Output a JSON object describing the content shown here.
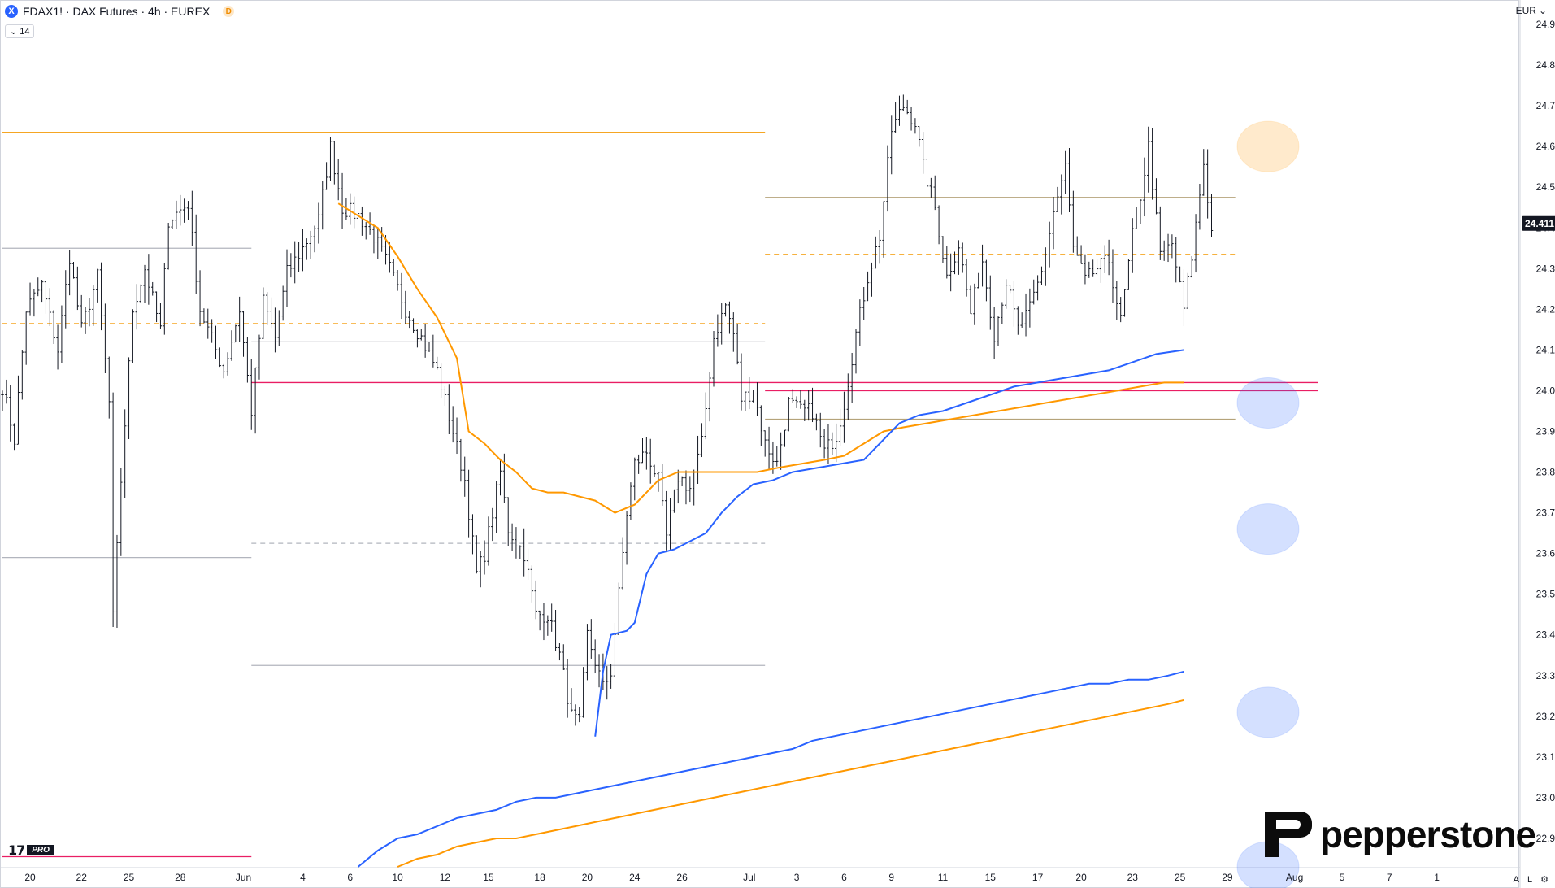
{
  "header": {
    "symbol_icon": "X",
    "title": "FDAX1! · DAX Futures · 4h · EUREX",
    "badge": "D",
    "indicator_count": "14",
    "currency": "EUR"
  },
  "footer": {
    "tv_logo": "17",
    "tv_pro": "PRO",
    "brand": "pepperstone",
    "btn_auto": "A",
    "btn_log": "L"
  },
  "icons": {
    "symbol": "exchange-logo-icon",
    "chevron": "chevron-down-icon",
    "currency_chevron": "chevron-down-icon",
    "brand_mark": "pepperstone-p-icon",
    "settings": "gear-icon"
  },
  "colors": {
    "candle": "#131722",
    "ema_orange": "#ff9800",
    "ema_blue": "#2962ff",
    "level_orange": "#f5a623",
    "level_gray": "#b2b5be",
    "level_pink": "#e91e63",
    "level_olive": "#b5a37a",
    "price_badge": "#131722",
    "target_blue": "#2962ff",
    "target_orange": "#ff9800"
  },
  "chart_data": {
    "type": "candlestick",
    "symbol": "FDAX1!",
    "timeframe": "4h",
    "ylim": [
      22830,
      24960
    ],
    "yticks": [
      22900,
      23000,
      23100,
      23200,
      23300,
      23400,
      23500,
      23600,
      23700,
      23800,
      23900,
      24000,
      24100,
      24200,
      24300,
      24400,
      24500,
      24600,
      24700,
      24800,
      24900
    ],
    "ytick_labels": [
      "22.900",
      "23.000",
      "23.100",
      "23.200",
      "23.300",
      "23.400",
      "23.500",
      "23.600",
      "23.700",
      "23.800",
      "23.900",
      "24.000",
      "24.100",
      "24.200",
      "24.300",
      "24.400",
      "24.500",
      "24.600",
      "24.700",
      "24.800",
      "24.900"
    ],
    "last_price": 24411,
    "last_price_label": "24.411",
    "bars_total": 324,
    "xticks": [
      {
        "label": "20",
        "bar": 7
      },
      {
        "label": "22",
        "bar": 20
      },
      {
        "label": "25",
        "bar": 32
      },
      {
        "label": "28",
        "bar": 45
      },
      {
        "label": "Jun",
        "bar": 61
      },
      {
        "label": "4",
        "bar": 76
      },
      {
        "label": "6",
        "bar": 88
      },
      {
        "label": "10",
        "bar": 100
      },
      {
        "label": "12",
        "bar": 112
      },
      {
        "label": "15",
        "bar": 123
      },
      {
        "label": "18",
        "bar": 136
      },
      {
        "label": "20",
        "bar": 148
      },
      {
        "label": "24",
        "bar": 160
      },
      {
        "label": "26",
        "bar": 172
      },
      {
        "label": "Jul",
        "bar": 189
      },
      {
        "label": "3",
        "bar": 201
      },
      {
        "label": "6",
        "bar": 213
      },
      {
        "label": "9",
        "bar": 225
      },
      {
        "label": "11",
        "bar": 238
      },
      {
        "label": "15",
        "bar": 250
      },
      {
        "label": "17",
        "bar": 262
      },
      {
        "label": "20",
        "bar": 273
      },
      {
        "label": "23",
        "bar": 286
      },
      {
        "label": "25",
        "bar": 298
      },
      {
        "label": "29",
        "bar": 310
      },
      {
        "label": "Aug",
        "bar": 327
      },
      {
        "label": "5",
        "bar": 339
      },
      {
        "label": "7",
        "bar": 351
      },
      {
        "label": "1",
        "bar": 363
      }
    ],
    "price_path": [
      [
        0,
        24010
      ],
      [
        3,
        23880
      ],
      [
        6,
        24200
      ],
      [
        10,
        24260
      ],
      [
        14,
        24100
      ],
      [
        17,
        24330
      ],
      [
        20,
        24150
      ],
      [
        24,
        24280
      ],
      [
        27,
        23970
      ],
      [
        28,
        23440
      ],
      [
        30,
        23780
      ],
      [
        33,
        24200
      ],
      [
        36,
        24300
      ],
      [
        40,
        24150
      ],
      [
        42,
        24420
      ],
      [
        47,
        24460
      ],
      [
        50,
        24200
      ],
      [
        54,
        24100
      ],
      [
        56,
        24050
      ],
      [
        60,
        24200
      ],
      [
        63,
        23950
      ],
      [
        66,
        24220
      ],
      [
        69,
        24130
      ],
      [
        72,
        24290
      ],
      [
        76,
        24350
      ],
      [
        80,
        24420
      ],
      [
        83,
        24600
      ],
      [
        86,
        24450
      ],
      [
        90,
        24430
      ],
      [
        94,
        24380
      ],
      [
        98,
        24300
      ],
      [
        102,
        24200
      ],
      [
        106,
        24130
      ],
      [
        110,
        24050
      ],
      [
        114,
        23900
      ],
      [
        117,
        23780
      ],
      [
        120,
        23550
      ],
      [
        122,
        23600
      ],
      [
        126,
        23800
      ],
      [
        128,
        23660
      ],
      [
        132,
        23600
      ],
      [
        135,
        23450
      ],
      [
        138,
        23450
      ],
      [
        141,
        23350
      ],
      [
        144,
        23200
      ],
      [
        146,
        23180
      ],
      [
        148,
        23400
      ],
      [
        152,
        23270
      ],
      [
        154,
        23310
      ],
      [
        156,
        23500
      ],
      [
        158,
        23700
      ],
      [
        160,
        23820
      ],
      [
        163,
        23850
      ],
      [
        166,
        23780
      ],
      [
        168,
        23640
      ],
      [
        171,
        23790
      ],
      [
        174,
        23760
      ],
      [
        177,
        23870
      ],
      [
        180,
        24130
      ],
      [
        183,
        24210
      ],
      [
        185,
        24140
      ],
      [
        187,
        23980
      ],
      [
        190,
        24000
      ],
      [
        193,
        23870
      ],
      [
        196,
        23820
      ],
      [
        199,
        23970
      ],
      [
        202,
        23950
      ],
      [
        205,
        23950
      ],
      [
        208,
        23850
      ],
      [
        211,
        23890
      ],
      [
        213,
        23970
      ],
      [
        216,
        24140
      ],
      [
        219,
        24280
      ],
      [
        222,
        24380
      ],
      [
        225,
        24640
      ],
      [
        228,
        24700
      ],
      [
        231,
        24660
      ],
      [
        233,
        24550
      ],
      [
        236,
        24450
      ],
      [
        239,
        24280
      ],
      [
        242,
        24360
      ],
      [
        245,
        24190
      ],
      [
        248,
        24320
      ],
      [
        251,
        24140
      ],
      [
        254,
        24270
      ],
      [
        257,
        24150
      ],
      [
        260,
        24200
      ],
      [
        263,
        24290
      ],
      [
        266,
        24440
      ],
      [
        269,
        24550
      ],
      [
        271,
        24350
      ],
      [
        274,
        24270
      ],
      [
        277,
        24300
      ],
      [
        280,
        24320
      ],
      [
        283,
        24170
      ],
      [
        286,
        24380
      ],
      [
        288,
        24480
      ],
      [
        290,
        24600
      ],
      [
        293,
        24330
      ],
      [
        296,
        24360
      ],
      [
        299,
        24200
      ],
      [
        301,
        24330
      ],
      [
        304,
        24560
      ],
      [
        306,
        24390
      ]
    ],
    "series": [
      {
        "style": "ema_orange",
        "points": [
          [
            85,
            24460
          ],
          [
            95,
            24400
          ],
          [
            100,
            24330
          ],
          [
            105,
            24250
          ],
          [
            110,
            24180
          ],
          [
            115,
            24080
          ],
          [
            118,
            23900
          ],
          [
            122,
            23870
          ],
          [
            126,
            23830
          ],
          [
            130,
            23800
          ],
          [
            134,
            23760
          ],
          [
            138,
            23750
          ],
          [
            142,
            23750
          ],
          [
            146,
            23740
          ],
          [
            150,
            23730
          ],
          [
            155,
            23700
          ],
          [
            160,
            23720
          ],
          [
            166,
            23780
          ],
          [
            171,
            23800
          ],
          [
            176,
            23800
          ],
          [
            181,
            23800
          ],
          [
            186,
            23800
          ],
          [
            191,
            23800
          ],
          [
            196,
            23810
          ],
          [
            202,
            23820
          ],
          [
            208,
            23830
          ],
          [
            213,
            23840
          ],
          [
            218,
            23870
          ],
          [
            223,
            23900
          ],
          [
            228,
            23910
          ],
          [
            234,
            23920
          ],
          [
            240,
            23930
          ],
          [
            246,
            23940
          ],
          [
            252,
            23950
          ],
          [
            258,
            23960
          ],
          [
            264,
            23970
          ],
          [
            270,
            23980
          ],
          [
            276,
            23990
          ],
          [
            282,
            24000
          ],
          [
            288,
            24010
          ],
          [
            294,
            24020
          ],
          [
            299,
            24020
          ]
        ]
      },
      {
        "style": "ema_blue",
        "points": [
          [
            150,
            23150
          ],
          [
            152,
            23310
          ],
          [
            154,
            23400
          ],
          [
            158,
            23410
          ],
          [
            160,
            23430
          ],
          [
            163,
            23550
          ],
          [
            166,
            23600
          ],
          [
            170,
            23610
          ],
          [
            174,
            23630
          ],
          [
            178,
            23650
          ],
          [
            182,
            23700
          ],
          [
            186,
            23740
          ],
          [
            190,
            23770
          ],
          [
            195,
            23780
          ],
          [
            200,
            23800
          ],
          [
            206,
            23810
          ],
          [
            212,
            23820
          ],
          [
            218,
            23830
          ],
          [
            222,
            23870
          ],
          [
            227,
            23920
          ],
          [
            232,
            23940
          ],
          [
            238,
            23950
          ],
          [
            244,
            23970
          ],
          [
            250,
            23990
          ],
          [
            256,
            24010
          ],
          [
            262,
            24020
          ],
          [
            268,
            24030
          ],
          [
            274,
            24040
          ],
          [
            280,
            24050
          ],
          [
            286,
            24070
          ],
          [
            292,
            24090
          ],
          [
            299,
            24100
          ]
        ]
      },
      {
        "style": "ema_blue",
        "points": [
          [
            90,
            22830
          ],
          [
            95,
            22870
          ],
          [
            100,
            22900
          ],
          [
            105,
            22910
          ],
          [
            110,
            22930
          ],
          [
            115,
            22950
          ],
          [
            120,
            22960
          ],
          [
            125,
            22970
          ],
          [
            130,
            22990
          ],
          [
            135,
            23000
          ],
          [
            140,
            23000
          ],
          [
            145,
            23010
          ],
          [
            150,
            23020
          ],
          [
            155,
            23030
          ],
          [
            160,
            23040
          ],
          [
            165,
            23050
          ],
          [
            170,
            23060
          ],
          [
            175,
            23070
          ],
          [
            180,
            23080
          ],
          [
            185,
            23090
          ],
          [
            190,
            23100
          ],
          [
            195,
            23110
          ],
          [
            200,
            23120
          ],
          [
            205,
            23140
          ],
          [
            210,
            23150
          ],
          [
            215,
            23160
          ],
          [
            220,
            23170
          ],
          [
            225,
            23180
          ],
          [
            230,
            23190
          ],
          [
            235,
            23200
          ],
          [
            240,
            23210
          ],
          [
            245,
            23220
          ],
          [
            250,
            23230
          ],
          [
            255,
            23240
          ],
          [
            260,
            23250
          ],
          [
            265,
            23260
          ],
          [
            270,
            23270
          ],
          [
            275,
            23280
          ],
          [
            280,
            23280
          ],
          [
            285,
            23290
          ],
          [
            290,
            23290
          ],
          [
            295,
            23300
          ],
          [
            299,
            23310
          ]
        ]
      },
      {
        "style": "ema_orange",
        "points": [
          [
            100,
            22830
          ],
          [
            105,
            22850
          ],
          [
            110,
            22860
          ],
          [
            115,
            22880
          ],
          [
            120,
            22890
          ],
          [
            125,
            22900
          ],
          [
            130,
            22900
          ],
          [
            135,
            22910
          ],
          [
            140,
            22920
          ],
          [
            145,
            22930
          ],
          [
            150,
            22940
          ],
          [
            155,
            22950
          ],
          [
            160,
            22960
          ],
          [
            165,
            22970
          ],
          [
            170,
            22980
          ],
          [
            175,
            22990
          ],
          [
            180,
            23000
          ],
          [
            185,
            23010
          ],
          [
            190,
            23020
          ],
          [
            195,
            23030
          ],
          [
            200,
            23040
          ],
          [
            205,
            23050
          ],
          [
            210,
            23060
          ],
          [
            215,
            23070
          ],
          [
            220,
            23080
          ],
          [
            225,
            23090
          ],
          [
            230,
            23100
          ],
          [
            235,
            23110
          ],
          [
            240,
            23120
          ],
          [
            245,
            23130
          ],
          [
            250,
            23140
          ],
          [
            255,
            23150
          ],
          [
            260,
            23160
          ],
          [
            265,
            23170
          ],
          [
            270,
            23180
          ],
          [
            275,
            23190
          ],
          [
            280,
            23200
          ],
          [
            285,
            23210
          ],
          [
            290,
            23220
          ],
          [
            295,
            23230
          ],
          [
            299,
            23240
          ]
        ]
      }
    ],
    "levels": [
      {
        "price": 24635,
        "from": 0,
        "to": 193,
        "style": "level_orange",
        "dash": false
      },
      {
        "price": 24475,
        "from": 193,
        "to": 312,
        "style": "level_olive",
        "dash": false
      },
      {
        "price": 24350,
        "from": 0,
        "to": 63,
        "style": "level_gray",
        "dash": false
      },
      {
        "price": 24335,
        "from": 193,
        "to": 312,
        "style": "level_orange",
        "dash": true
      },
      {
        "price": 24165,
        "from": 0,
        "to": 193,
        "style": "level_orange",
        "dash": true
      },
      {
        "price": 24120,
        "from": 63,
        "to": 193,
        "style": "level_gray",
        "dash": false
      },
      {
        "price": 24020,
        "from": 63,
        "to": 333,
        "style": "level_pink",
        "dash": false
      },
      {
        "price": 24000,
        "from": 193,
        "to": 333,
        "style": "level_pink",
        "dash": false
      },
      {
        "price": 23930,
        "from": 193,
        "to": 312,
        "style": "level_olive",
        "dash": false
      },
      {
        "price": 23625,
        "from": 63,
        "to": 193,
        "style": "level_gray",
        "dash": true
      },
      {
        "price": 23590,
        "from": 0,
        "to": 63,
        "style": "level_gray",
        "dash": false
      },
      {
        "price": 23325,
        "from": 63,
        "to": 193,
        "style": "level_gray",
        "dash": false
      },
      {
        "price": 22855,
        "from": 0,
        "to": 63,
        "style": "level_pink",
        "dash": false
      }
    ],
    "targets": [
      {
        "price": 24600,
        "style": "target_orange"
      },
      {
        "price": 23970,
        "style": "target_blue"
      },
      {
        "price": 23660,
        "style": "target_blue"
      },
      {
        "price": 23210,
        "style": "target_blue"
      },
      {
        "price": 22830,
        "style": "target_blue"
      }
    ]
  }
}
